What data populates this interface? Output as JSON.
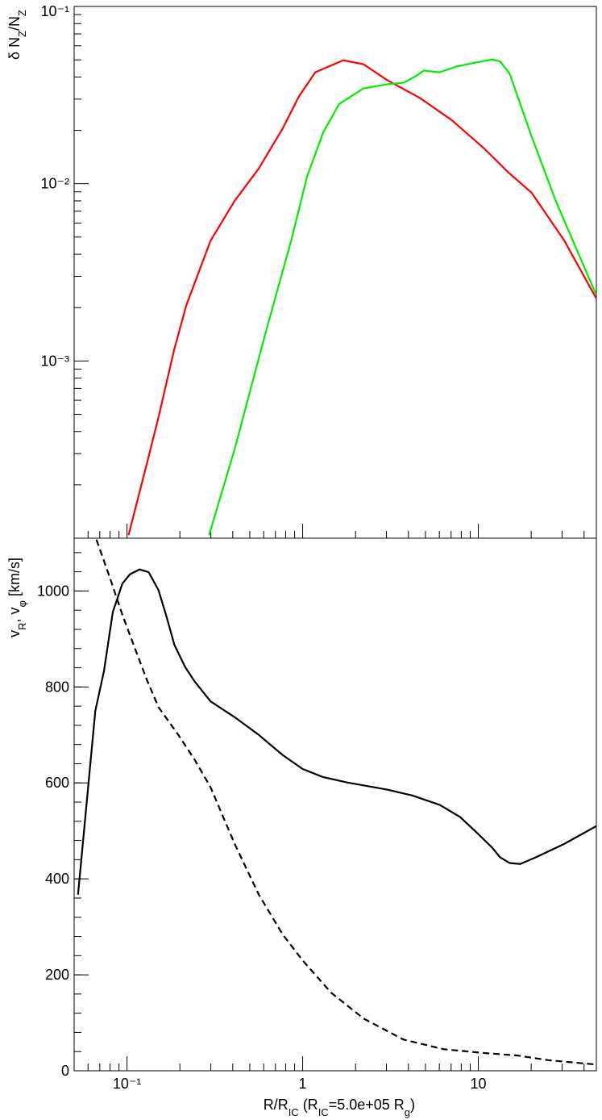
{
  "chart_data": [
    {
      "type": "line",
      "xlog": true,
      "ylog": true,
      "xlim": [
        0.05,
        47
      ],
      "ylim": [
        0.0001,
        0.1
      ],
      "yticks": [
        {
          "value": 0.1,
          "label": "10⁻¹"
        },
        {
          "value": 0.01,
          "label": "10⁻²"
        },
        {
          "value": 0.001,
          "label": "10⁻³"
        }
      ],
      "ylabel": [
        "δ N",
        "Z",
        "/N",
        "Z"
      ],
      "series": [
        {
          "color": "#ff0000",
          "x": [
            0.102,
            0.129,
            0.151,
            0.186,
            0.218,
            0.299,
            0.41,
            0.563,
            0.77,
            0.953,
            1.18,
            1.7,
            2.22,
            3.03,
            4.64,
            7.08,
            10.8,
            14.8,
            20.1,
            30.9,
            47
          ],
          "values": [
            0.000104,
            0.000258,
            0.00048,
            0.00117,
            0.00207,
            0.00477,
            0.008,
            0.0122,
            0.0205,
            0.0311,
            0.0425,
            0.0497,
            0.0472,
            0.0384,
            0.0305,
            0.0228,
            0.0158,
            0.0116,
            0.0089,
            0.00477,
            0.00225
          ]
        },
        {
          "color": "#00ee00",
          "x": [
            0.293,
            0.41,
            0.624,
            0.86,
            1.06,
            1.31,
            1.61,
            2.22,
            3.03,
            3.75,
            4.4,
            4.9,
            6.0,
            7.5,
            9.7,
            12.0,
            13.3,
            15.1,
            20.1,
            27.6,
            47
          ],
          "values": [
            0.000104,
            0.000318,
            0.00152,
            0.00477,
            0.011,
            0.0195,
            0.0281,
            0.0345,
            0.0364,
            0.0371,
            0.0404,
            0.0435,
            0.0425,
            0.0458,
            0.0483,
            0.0502,
            0.049,
            0.0417,
            0.0185,
            0.008,
            0.00235
          ]
        }
      ]
    },
    {
      "type": "line",
      "xlog": true,
      "ylog": false,
      "xlim": [
        0.05,
        47
      ],
      "ylim": [
        0,
        1110
      ],
      "xticks": [
        {
          "value": 0.1,
          "label": "10⁻¹"
        },
        1,
        10
      ],
      "yticks": [
        0,
        200,
        400,
        600,
        800,
        1000
      ],
      "xlabel": [
        "R/R",
        "IC",
        " (R",
        "IC",
        "=5.0e+05 R",
        "g",
        ")"
      ],
      "ylabel": [
        "v",
        "R",
        ", v",
        "φ",
        " [km/s]"
      ],
      "series": [
        {
          "color": "#000000",
          "dash": false,
          "x": [
            0.0526,
            0.058,
            0.066,
            0.074,
            0.083,
            0.094,
            0.104,
            0.118,
            0.133,
            0.151,
            0.168,
            0.186,
            0.214,
            0.242,
            0.299,
            0.41,
            0.563,
            0.77,
            1.0,
            1.31,
            1.79,
            3.03,
            4.19,
            6.04,
            7.87,
            9.7,
            12.0,
            13.3,
            15.1,
            17.3,
            21.3,
            30.9,
            47
          ],
          "values": [
            367,
            532,
            750,
            834,
            956,
            1015,
            1035,
            1045,
            1039,
            1002,
            946,
            888,
            842,
            812,
            770,
            737,
            700,
            658,
            629,
            612,
            601,
            586,
            574,
            554,
            529,
            498,
            465,
            445,
            433,
            431,
            445,
            473,
            510
          ]
        },
        {
          "color": "#000000",
          "dash": true,
          "x": [
            0.067,
            0.08,
            0.094,
            0.11,
            0.129,
            0.151,
            0.196,
            0.242,
            0.299,
            0.41,
            0.563,
            0.77,
            1.0,
            1.45,
            2.22,
            3.75,
            6.34,
            10.8,
            16.5,
            25.2,
            47
          ],
          "values": [
            1107,
            1027,
            951,
            884,
            817,
            758,
            700,
            649,
            591,
            473,
            367,
            284,
            230,
            163,
            109,
            65,
            45,
            37,
            32,
            22,
            13
          ]
        }
      ]
    }
  ]
}
